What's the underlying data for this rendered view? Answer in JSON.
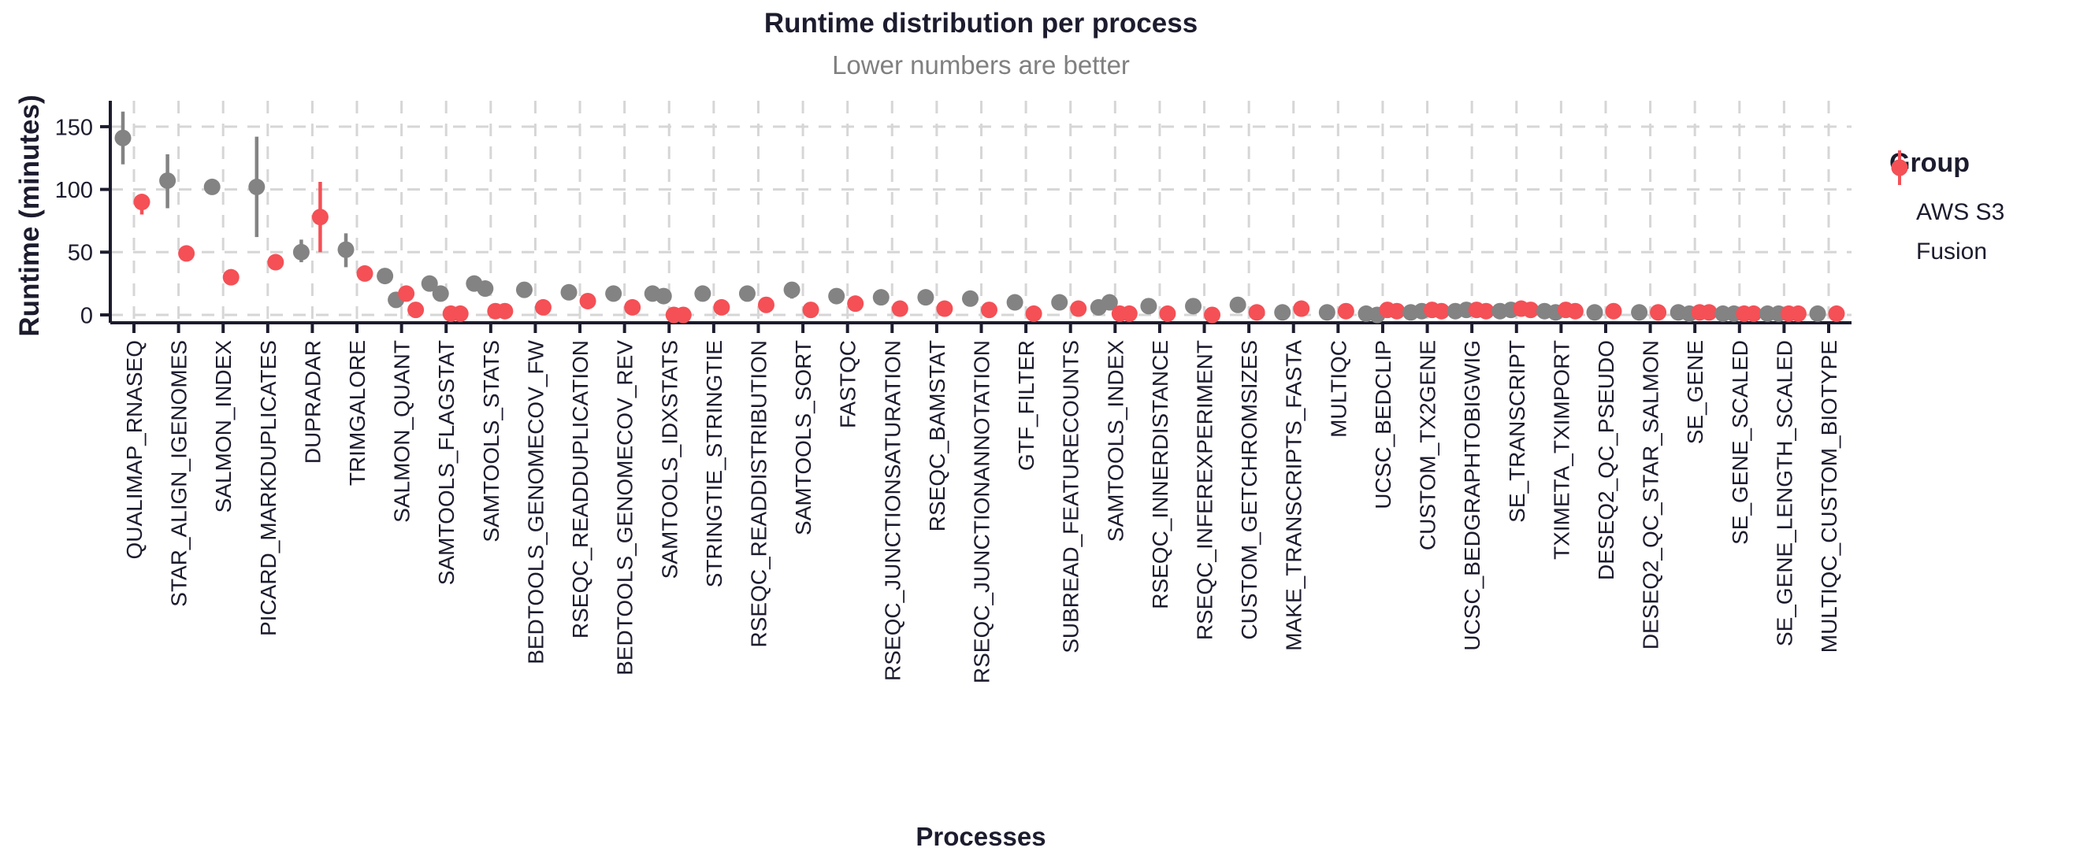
{
  "title": "Runtime distribution per process",
  "subtitle": "Lower numbers are better",
  "legend": {
    "title": "Group",
    "entries": [
      {
        "label": "AWS S3",
        "color": "#838383"
      },
      {
        "label": "Fusion",
        "color": "#f45056"
      }
    ]
  },
  "colors": {
    "axis": "#1c1c2e",
    "grid": "#d6d6d6",
    "aws_s3": "#838383",
    "fusion": "#f45056",
    "subtitle": "#808080"
  },
  "chart_data": {
    "type": "scatter",
    "title": "Runtime distribution per process",
    "subtitle": "Lower numbers are better",
    "xlabel": "Processes",
    "ylabel": "Runtime (minutes)",
    "ylim": [
      0,
      170
    ],
    "yticks": [
      0,
      50,
      100,
      150
    ],
    "grid": true,
    "legend_position": "right",
    "series": [
      {
        "name": "AWS S3",
        "color": "#838383"
      },
      {
        "name": "Fusion",
        "color": "#f45056"
      }
    ],
    "processes": [
      {
        "name": "QUALIMAP_RNASEQ",
        "aws": {
          "values": [
            141
          ],
          "err": [
            120,
            162
          ]
        },
        "fusion": {
          "values": [
            90
          ],
          "err": [
            80,
            96
          ]
        }
      },
      {
        "name": "STAR_ALIGN_IGENOMES",
        "aws": {
          "values": [
            107
          ],
          "err": [
            85,
            128
          ]
        },
        "fusion": {
          "values": [
            49
          ],
          "err": null
        }
      },
      {
        "name": "SALMON_INDEX",
        "aws": {
          "values": [
            102
          ],
          "err": null
        },
        "fusion": {
          "values": [
            30
          ],
          "err": null
        }
      },
      {
        "name": "PICARD_MARKDUPLICATES",
        "aws": {
          "values": [
            102
          ],
          "err": [
            62,
            142
          ]
        },
        "fusion": {
          "values": [
            42
          ],
          "err": null
        }
      },
      {
        "name": "DUPRADAR",
        "aws": {
          "values": [
            50
          ],
          "err": [
            42,
            60
          ]
        },
        "fusion": {
          "values": [
            78
          ],
          "err": [
            50,
            106
          ]
        }
      },
      {
        "name": "TRIMGALORE",
        "aws": {
          "values": [
            52
          ],
          "err": [
            38,
            65
          ]
        },
        "fusion": {
          "values": [
            33
          ],
          "err": null
        }
      },
      {
        "name": "SALMON_QUANT",
        "aws": {
          "values": [
            31,
            12
          ],
          "err": null
        },
        "fusion": {
          "values": [
            17,
            4
          ],
          "err": null
        }
      },
      {
        "name": "SAMTOOLS_FLAGSTAT",
        "aws": {
          "values": [
            25,
            17
          ],
          "err": null
        },
        "fusion": {
          "values": [
            1,
            1
          ],
          "err": null
        }
      },
      {
        "name": "SAMTOOLS_STATS",
        "aws": {
          "values": [
            25,
            21
          ],
          "err": null
        },
        "fusion": {
          "values": [
            3,
            3
          ],
          "err": null
        }
      },
      {
        "name": "BEDTOOLS_GENOMECOV_FW",
        "aws": {
          "values": [
            20
          ],
          "err": null
        },
        "fusion": {
          "values": [
            6
          ],
          "err": null
        }
      },
      {
        "name": "RSEQC_READDUPLICATION",
        "aws": {
          "values": [
            18
          ],
          "err": null
        },
        "fusion": {
          "values": [
            11
          ],
          "err": null
        }
      },
      {
        "name": "BEDTOOLS_GENOMECOV_REV",
        "aws": {
          "values": [
            17
          ],
          "err": null
        },
        "fusion": {
          "values": [
            6
          ],
          "err": null
        }
      },
      {
        "name": "SAMTOOLS_IDXSTATS",
        "aws": {
          "values": [
            17,
            15
          ],
          "err": null
        },
        "fusion": {
          "values": [
            0,
            0
          ],
          "err": null
        }
      },
      {
        "name": "STRINGTIE_STRINGTIE",
        "aws": {
          "values": [
            17
          ],
          "err": null
        },
        "fusion": {
          "values": [
            6
          ],
          "err": null
        }
      },
      {
        "name": "RSEQC_READDISTRIBUTION",
        "aws": {
          "values": [
            17
          ],
          "err": null
        },
        "fusion": {
          "values": [
            8
          ],
          "err": null
        }
      },
      {
        "name": "SAMTOOLS_SORT",
        "aws": {
          "values": [
            20
          ],
          "err": [
            13,
            25
          ]
        },
        "fusion": {
          "values": [
            4
          ],
          "err": null
        }
      },
      {
        "name": "FASTQC",
        "aws": {
          "values": [
            15
          ],
          "err": null
        },
        "fusion": {
          "values": [
            9
          ],
          "err": null
        }
      },
      {
        "name": "RSEQC_JUNCTIONSATURATION",
        "aws": {
          "values": [
            14
          ],
          "err": null
        },
        "fusion": {
          "values": [
            5
          ],
          "err": null
        }
      },
      {
        "name": "RSEQC_BAMSTAT",
        "aws": {
          "values": [
            14
          ],
          "err": null
        },
        "fusion": {
          "values": [
            5
          ],
          "err": null
        }
      },
      {
        "name": "RSEQC_JUNCTIONANNOTATION",
        "aws": {
          "values": [
            13
          ],
          "err": null
        },
        "fusion": {
          "values": [
            4
          ],
          "err": null
        }
      },
      {
        "name": "GTF_FILTER",
        "aws": {
          "values": [
            10
          ],
          "err": null
        },
        "fusion": {
          "values": [
            1
          ],
          "err": null
        }
      },
      {
        "name": "SUBREAD_FEATURECOUNTS",
        "aws": {
          "values": [
            10
          ],
          "err": null
        },
        "fusion": {
          "values": [
            5
          ],
          "err": null
        }
      },
      {
        "name": "SAMTOOLS_INDEX",
        "aws": {
          "values": [
            6,
            10
          ],
          "err": null
        },
        "fusion": {
          "values": [
            1,
            1
          ],
          "err": null
        }
      },
      {
        "name": "RSEQC_INNERDISTANCE",
        "aws": {
          "values": [
            7
          ],
          "err": null
        },
        "fusion": {
          "values": [
            1
          ],
          "err": null
        }
      },
      {
        "name": "RSEQC_INFEREXPERIMENT",
        "aws": {
          "values": [
            7
          ],
          "err": null
        },
        "fusion": {
          "values": [
            0
          ],
          "err": null
        }
      },
      {
        "name": "CUSTOM_GETCHROMSIZES",
        "aws": {
          "values": [
            8
          ],
          "err": null
        },
        "fusion": {
          "values": [
            2
          ],
          "err": null
        }
      },
      {
        "name": "MAKE_TRANSCRIPTS_FASTA",
        "aws": {
          "values": [
            2
          ],
          "err": null
        },
        "fusion": {
          "values": [
            5
          ],
          "err": null
        }
      },
      {
        "name": "MULTIQC",
        "aws": {
          "values": [
            2
          ],
          "err": null
        },
        "fusion": {
          "values": [
            3
          ],
          "err": null
        }
      },
      {
        "name": "UCSC_BEDCLIP",
        "aws": {
          "values": [
            1,
            0
          ],
          "err": null
        },
        "fusion": {
          "values": [
            4,
            3
          ],
          "err": null
        }
      },
      {
        "name": "CUSTOM_TX2GENE",
        "aws": {
          "values": [
            2,
            3
          ],
          "err": null
        },
        "fusion": {
          "values": [
            4,
            3
          ],
          "err": null
        }
      },
      {
        "name": "UCSC_BEDGRAPHTOBIGWIG",
        "aws": {
          "values": [
            3,
            4
          ],
          "err": null
        },
        "fusion": {
          "values": [
            4,
            3
          ],
          "err": null
        }
      },
      {
        "name": "SE_TRANSCRIPT",
        "aws": {
          "values": [
            3,
            4
          ],
          "err": null
        },
        "fusion": {
          "values": [
            5,
            4
          ],
          "err": null
        }
      },
      {
        "name": "TXIMETA_TXIMPORT",
        "aws": {
          "values": [
            3,
            2
          ],
          "err": null
        },
        "fusion": {
          "values": [
            4,
            3
          ],
          "err": null
        }
      },
      {
        "name": "DESEQ2_QC_PSEUDO",
        "aws": {
          "values": [
            2
          ],
          "err": null
        },
        "fusion": {
          "values": [
            3
          ],
          "err": null
        }
      },
      {
        "name": "DESEQ2_QC_STAR_SALMON",
        "aws": {
          "values": [
            2
          ],
          "err": null
        },
        "fusion": {
          "values": [
            2
          ],
          "err": null
        }
      },
      {
        "name": "SE_GENE",
        "aws": {
          "values": [
            2,
            1
          ],
          "err": null
        },
        "fusion": {
          "values": [
            2,
            2
          ],
          "err": null
        }
      },
      {
        "name": "SE_GENE_SCALED",
        "aws": {
          "values": [
            1,
            1
          ],
          "err": null
        },
        "fusion": {
          "values": [
            1,
            1
          ],
          "err": null
        }
      },
      {
        "name": "SE_GENE_LENGTH_SCALED",
        "aws": {
          "values": [
            1,
            1
          ],
          "err": null
        },
        "fusion": {
          "values": [
            1,
            1
          ],
          "err": null
        }
      },
      {
        "name": "MULTIQC_CUSTOM_BIOTYPE",
        "aws": {
          "values": [
            1
          ],
          "err": null
        },
        "fusion": {
          "values": [
            1
          ],
          "err": null
        }
      }
    ]
  }
}
